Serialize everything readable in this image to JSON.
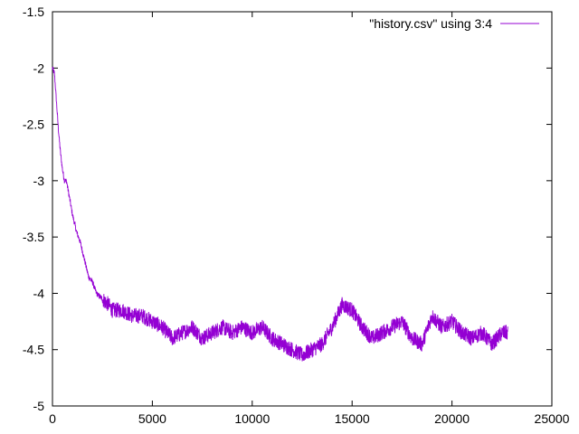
{
  "chart_data": {
    "type": "line",
    "title": "",
    "xlabel": "",
    "ylabel": "",
    "xlim": [
      0,
      25000
    ],
    "ylim": [
      -5,
      -1.5
    ],
    "xticks": [
      0,
      5000,
      10000,
      15000,
      20000,
      25000
    ],
    "yticks": [
      -5,
      -4.5,
      -4,
      -3.5,
      -3,
      -2.5,
      -2,
      -1.5
    ],
    "xtick_labels": [
      "0",
      "5000",
      "10000",
      "15000",
      "20000",
      "25000"
    ],
    "ytick_labels": [
      "-5",
      "-4.5",
      "-4",
      "-3.5",
      "-3",
      "-2.5",
      "-2",
      "-1.5"
    ],
    "grid": false,
    "legend_position": "top-right",
    "series": [
      {
        "name": "\"history.csv\" using 3:4",
        "color": "#9400d3",
        "x": [
          0,
          100,
          200,
          300,
          400,
          500,
          600,
          700,
          800,
          900,
          1000,
          1200,
          1400,
          1600,
          1800,
          2000,
          2200,
          2500,
          2800,
          3000,
          3500,
          4000,
          4500,
          5000,
          5500,
          6000,
          6500,
          7000,
          7500,
          8000,
          8500,
          9000,
          9500,
          10000,
          10500,
          11000,
          11500,
          12000,
          12500,
          13000,
          13500,
          14000,
          14500,
          15000,
          15500,
          16000,
          16500,
          17000,
          17500,
          18000,
          18500,
          19000,
          19500,
          20000,
          20500,
          21000,
          21500,
          22000,
          22500,
          22800
        ],
        "y": [
          -2.0,
          -2.05,
          -2.3,
          -2.55,
          -2.75,
          -2.9,
          -3.0,
          -3.0,
          -3.1,
          -3.2,
          -3.3,
          -3.45,
          -3.55,
          -3.7,
          -3.85,
          -3.9,
          -4.0,
          -4.05,
          -4.1,
          -4.15,
          -4.15,
          -4.2,
          -4.2,
          -4.25,
          -4.3,
          -4.4,
          -4.35,
          -4.3,
          -4.4,
          -4.35,
          -4.3,
          -4.35,
          -4.3,
          -4.35,
          -4.3,
          -4.4,
          -4.45,
          -4.5,
          -4.55,
          -4.5,
          -4.45,
          -4.3,
          -4.1,
          -4.15,
          -4.3,
          -4.4,
          -4.35,
          -4.3,
          -4.25,
          -4.4,
          -4.45,
          -4.2,
          -4.3,
          -4.25,
          -4.35,
          -4.4,
          -4.35,
          -4.45,
          -4.35,
          -4.35
        ]
      }
    ]
  }
}
